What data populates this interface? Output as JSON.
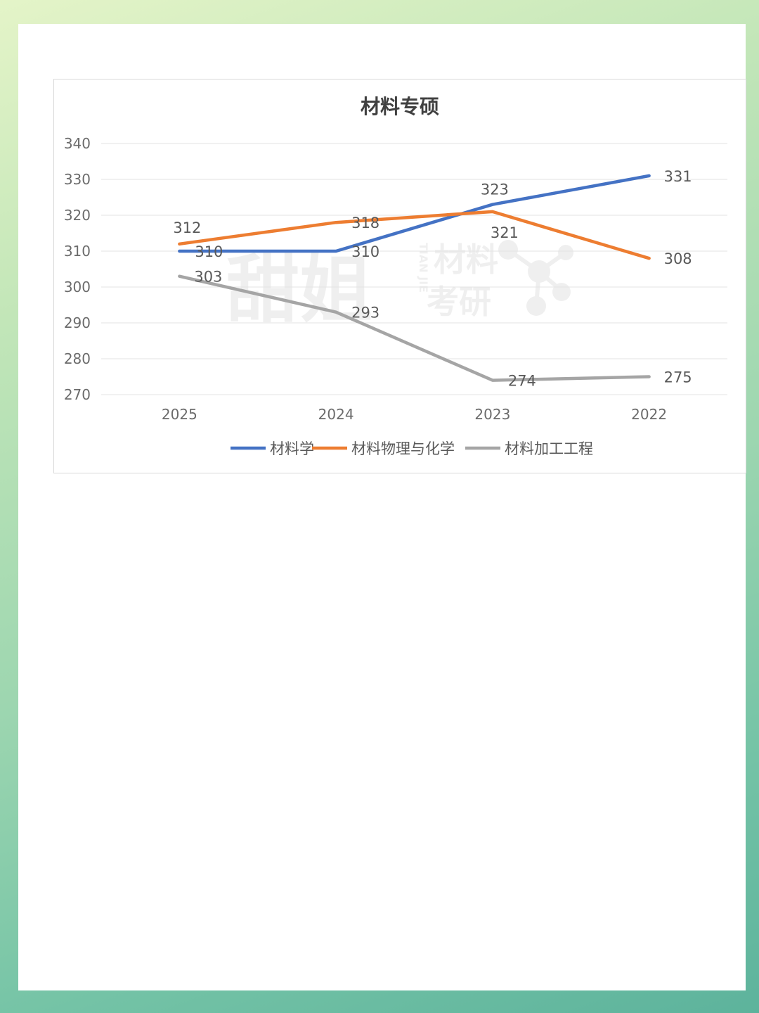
{
  "chart_data": {
    "type": "line",
    "title": "材料专硕",
    "categories": [
      "2025",
      "2024",
      "2023",
      "2022"
    ],
    "series": [
      {
        "name": "材料学",
        "values": [
          310,
          310,
          323,
          331
        ],
        "color": "#4472c4"
      },
      {
        "name": "材料物理与化学",
        "values": [
          312,
          318,
          321,
          308
        ],
        "color": "#ed7d31"
      },
      {
        "name": "材料加工工程",
        "values": [
          303,
          293,
          274,
          275
        ],
        "color": "#a5a5a5"
      }
    ],
    "ylim": [
      270,
      340
    ],
    "yticks": [
      270,
      280,
      290,
      300,
      310,
      320,
      330,
      340
    ],
    "grid": true,
    "legend": "bottom",
    "xlabel": "",
    "ylabel": ""
  },
  "watermark": {
    "brand": "甜姐",
    "pinyin": "TIAN JIE",
    "line1": "材料",
    "line2": "考研",
    "icon": "molecule-icon"
  }
}
